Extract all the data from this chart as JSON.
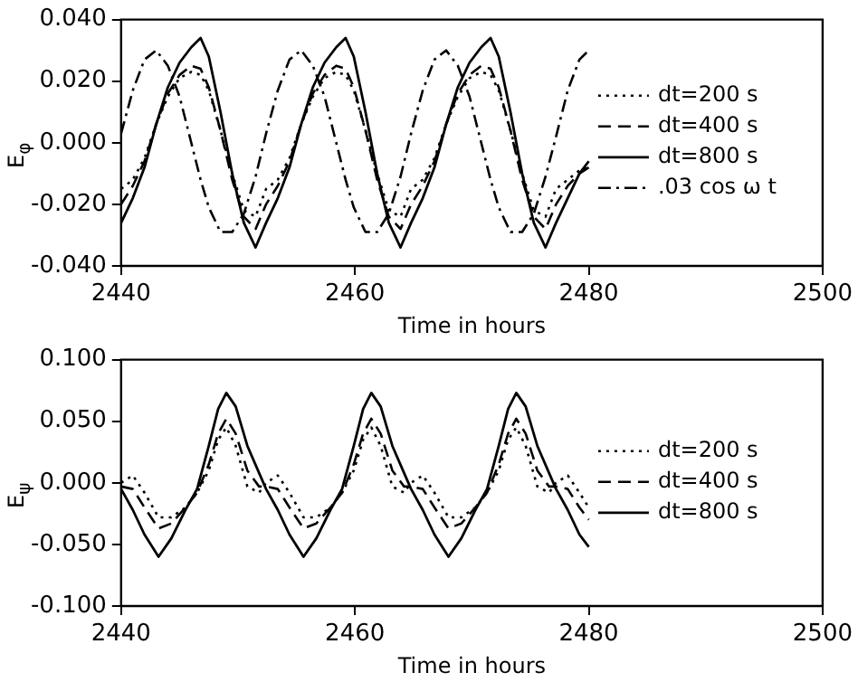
{
  "chart_data": [
    {
      "type": "line",
      "xlabel": "Time in hours",
      "ylabel": "E$_{φ}$",
      "xlim": [
        2440,
        2500
      ],
      "xticks": [
        2440,
        2460,
        2480,
        2500
      ],
      "ylim": [
        -0.04,
        0.04
      ],
      "yticks": [
        {
          "value": -0.04,
          "label": "-0.040"
        },
        {
          "value": -0.02,
          "label": "-0.020"
        },
        {
          "value": 0,
          "label": "0.000"
        },
        {
          "value": 0.02,
          "label": "0.020"
        },
        {
          "value": 0.04,
          "label": "0.040"
        }
      ],
      "grid": false,
      "legend": "right",
      "marker": "none",
      "series": [
        {
          "name": "dt=200 s",
          "color": "#000000",
          "line_style": "dotted",
          "x": [
            2440,
            2441,
            2442,
            2443,
            2444,
            2445,
            2446,
            2446.8,
            2447.5,
            2448.5,
            2449.5,
            2450.5,
            2451.5,
            2452.4,
            2453.4,
            2454.4,
            2455.4,
            2456.4,
            2457.4,
            2458.4,
            2459.2,
            2459.9,
            2460.9,
            2461.9,
            2462.9,
            2463.9,
            2464.8,
            2465.8,
            2466.8,
            2467.8,
            2468.8,
            2469.8,
            2470.8,
            2471.6,
            2472.3,
            2473.3,
            2474.3,
            2475.3,
            2476.3,
            2477.2,
            2478.2,
            2479.2,
            2480
          ],
          "values": [
            -0.015,
            -0.012,
            -0.005,
            0.006,
            0.015,
            0.021,
            0.023,
            0.022,
            0.017,
            0.004,
            -0.01,
            -0.022,
            -0.024,
            -0.015,
            -0.012,
            -0.005,
            0.006,
            0.015,
            0.021,
            0.023,
            0.022,
            0.017,
            0.004,
            -0.01,
            -0.022,
            -0.024,
            -0.015,
            -0.012,
            -0.005,
            0.006,
            0.015,
            0.021,
            0.023,
            0.022,
            0.017,
            0.004,
            -0.01,
            -0.022,
            -0.024,
            -0.015,
            -0.012,
            -0.009,
            -0.008
          ]
        },
        {
          "name": "dt=400 s",
          "color": "#000000",
          "line_style": "dashed",
          "x": [
            2440,
            2441,
            2442,
            2443,
            2444,
            2445,
            2446,
            2446.8,
            2447.5,
            2448.5,
            2449.5,
            2450.5,
            2451.5,
            2452.4,
            2453.4,
            2454.4,
            2455.4,
            2456.4,
            2457.4,
            2458.4,
            2459.2,
            2459.9,
            2460.9,
            2461.9,
            2462.9,
            2463.9,
            2464.8,
            2465.8,
            2466.8,
            2467.8,
            2468.8,
            2469.8,
            2470.8,
            2471.6,
            2472.3,
            2473.3,
            2474.3,
            2475.3,
            2476.3,
            2477.2,
            2478.2,
            2479.2,
            2480
          ],
          "values": [
            -0.02,
            -0.014,
            -0.006,
            0.006,
            0.016,
            0.022,
            0.025,
            0.024,
            0.018,
            0.004,
            -0.012,
            -0.024,
            -0.028,
            -0.02,
            -0.014,
            -0.006,
            0.006,
            0.016,
            0.022,
            0.025,
            0.024,
            0.018,
            0.004,
            -0.012,
            -0.024,
            -0.028,
            -0.02,
            -0.014,
            -0.006,
            0.006,
            0.016,
            0.022,
            0.025,
            0.024,
            0.018,
            0.004,
            -0.012,
            -0.024,
            -0.028,
            -0.02,
            -0.014,
            -0.01,
            -0.008
          ]
        },
        {
          "name": "dt=800 s",
          "color": "#000000",
          "line_style": "solid",
          "x": [
            2440,
            2441,
            2442,
            2443,
            2444,
            2445,
            2446,
            2446.8,
            2447.5,
            2448.5,
            2449.5,
            2450.5,
            2451.5,
            2452.4,
            2453.4,
            2454.4,
            2455.4,
            2456.4,
            2457.4,
            2458.4,
            2459.2,
            2459.9,
            2460.9,
            2461.9,
            2462.9,
            2463.9,
            2464.8,
            2465.8,
            2466.8,
            2467.8,
            2468.8,
            2469.8,
            2470.8,
            2471.6,
            2472.3,
            2473.3,
            2474.3,
            2475.3,
            2476.3,
            2477.2,
            2478.2,
            2479.2,
            2480
          ],
          "values": [
            -0.026,
            -0.018,
            -0.008,
            0.006,
            0.018,
            0.026,
            0.031,
            0.034,
            0.028,
            0.01,
            -0.01,
            -0.026,
            -0.034,
            -0.026,
            -0.018,
            -0.008,
            0.006,
            0.018,
            0.026,
            0.031,
            0.034,
            0.028,
            0.01,
            -0.01,
            -0.026,
            -0.034,
            -0.026,
            -0.018,
            -0.008,
            0.006,
            0.018,
            0.026,
            0.031,
            0.034,
            0.028,
            0.01,
            -0.01,
            -0.026,
            -0.034,
            -0.026,
            -0.018,
            -0.01,
            -0.006
          ]
        },
        {
          "name": ".03 cos ω t",
          "color": "#000000",
          "line_style": "dashdot",
          "x": [
            2440,
            2441,
            2442,
            2443,
            2444,
            2445,
            2446,
            2446.8,
            2447.5,
            2448.5,
            2449.5,
            2450.5,
            2451.5,
            2452.4,
            2453.4,
            2454.4,
            2455.4,
            2456.4,
            2457.4,
            2458.4,
            2459.2,
            2459.9,
            2460.9,
            2461.9,
            2462.9,
            2463.9,
            2464.8,
            2465.8,
            2466.8,
            2467.8,
            2468.8,
            2469.8,
            2470.8,
            2471.6,
            2472.3,
            2473.3,
            2474.3,
            2475.3,
            2476.3,
            2477.2,
            2478.2,
            2479.2,
            2480
          ],
          "values": [
            0.003,
            0.017,
            0.027,
            0.03,
            0.025,
            0.015,
            0.0,
            -0.012,
            -0.021,
            -0.029,
            -0.029,
            -0.023,
            -0.011,
            0.003,
            0.017,
            0.027,
            0.03,
            0.025,
            0.015,
            0.0,
            -0.012,
            -0.021,
            -0.029,
            -0.029,
            -0.023,
            -0.011,
            0.003,
            0.017,
            0.027,
            0.03,
            0.025,
            0.015,
            0.0,
            -0.012,
            -0.021,
            -0.029,
            -0.029,
            -0.023,
            -0.011,
            0.002,
            0.017,
            0.027,
            0.03
          ]
        }
      ]
    },
    {
      "type": "line",
      "xlabel": "Time in hours",
      "ylabel": "E$_{ψ}$",
      "xlim": [
        2440,
        2500
      ],
      "xticks": [
        2440,
        2460,
        2480,
        2500
      ],
      "ylim": [
        -0.1,
        0.1
      ],
      "yticks": [
        {
          "value": -0.1,
          "label": "-0.100"
        },
        {
          "value": -0.05,
          "label": "-0.050"
        },
        {
          "value": 0,
          "label": "0.000"
        },
        {
          "value": 0.05,
          "label": "0.050"
        },
        {
          "value": 0.1,
          "label": "0.100"
        }
      ],
      "grid": false,
      "legend": "right",
      "marker": "none",
      "series": [
        {
          "name": "dt=200 s",
          "color": "#000000",
          "line_style": "dotted",
          "x": [
            2440,
            2441,
            2442,
            2443.2,
            2444.3,
            2445.5,
            2446.5,
            2447.5,
            2448.3,
            2449,
            2449.8,
            2450.8,
            2451.8,
            2452.4,
            2453.4,
            2454.4,
            2455.6,
            2456.7,
            2457.9,
            2458.9,
            2459.9,
            2460.7,
            2461.4,
            2462.2,
            2463.2,
            2464.2,
            2464.8,
            2465.8,
            2466.8,
            2468,
            2469.1,
            2470.3,
            2471.3,
            2472.3,
            2473.1,
            2473.8,
            2474.6,
            2475.6,
            2476.6,
            2477.2,
            2478.2,
            2479.2,
            2480
          ],
          "values": [
            0.0,
            0.006,
            -0.008,
            -0.028,
            -0.028,
            -0.02,
            -0.008,
            0.01,
            0.035,
            0.045,
            0.03,
            -0.003,
            -0.008,
            0.0,
            0.006,
            -0.008,
            -0.028,
            -0.028,
            -0.02,
            -0.008,
            0.01,
            0.035,
            0.045,
            0.03,
            -0.003,
            -0.008,
            0.0,
            0.006,
            -0.008,
            -0.028,
            -0.028,
            -0.02,
            -0.008,
            0.01,
            0.035,
            0.045,
            0.03,
            -0.003,
            -0.008,
            0.0,
            0.006,
            -0.008,
            -0.02
          ]
        },
        {
          "name": "dt=400 s",
          "color": "#000000",
          "line_style": "dashed",
          "x": [
            2440,
            2441,
            2442,
            2443.2,
            2444.3,
            2445.5,
            2446.5,
            2447.5,
            2448.3,
            2449,
            2449.8,
            2450.8,
            2451.8,
            2452.4,
            2453.4,
            2454.4,
            2455.6,
            2456.7,
            2457.9,
            2458.9,
            2459.9,
            2460.7,
            2461.4,
            2462.2,
            2463.2,
            2464.2,
            2464.8,
            2465.8,
            2466.8,
            2468,
            2469.1,
            2470.3,
            2471.3,
            2472.3,
            2473.1,
            2473.8,
            2474.6,
            2475.6,
            2476.6,
            2477.2,
            2478.2,
            2479.2,
            2480
          ],
          "values": [
            -0.003,
            -0.005,
            -0.02,
            -0.037,
            -0.033,
            -0.02,
            -0.008,
            0.015,
            0.04,
            0.052,
            0.04,
            0.01,
            -0.003,
            -0.003,
            -0.005,
            -0.02,
            -0.037,
            -0.033,
            -0.02,
            -0.008,
            0.015,
            0.04,
            0.052,
            0.04,
            0.01,
            -0.003,
            -0.003,
            -0.005,
            -0.02,
            -0.037,
            -0.033,
            -0.02,
            -0.008,
            0.015,
            0.04,
            0.052,
            0.04,
            0.01,
            -0.003,
            -0.003,
            -0.005,
            -0.02,
            -0.03
          ]
        },
        {
          "name": "dt=800 s",
          "color": "#000000",
          "line_style": "solid",
          "x": [
            2440,
            2441,
            2442,
            2443.2,
            2444.3,
            2445.5,
            2446.5,
            2447.5,
            2448.3,
            2449,
            2449.8,
            2450.8,
            2451.8,
            2452.4,
            2453.4,
            2454.4,
            2455.6,
            2456.7,
            2457.9,
            2458.9,
            2459.9,
            2460.7,
            2461.4,
            2462.2,
            2463.2,
            2464.2,
            2464.8,
            2465.8,
            2466.8,
            2468,
            2469.1,
            2470.3,
            2471.3,
            2472.3,
            2473.1,
            2473.8,
            2474.6,
            2475.6,
            2476.6,
            2477.2,
            2478.2,
            2479.2,
            2480
          ],
          "values": [
            -0.005,
            -0.022,
            -0.042,
            -0.06,
            -0.045,
            -0.022,
            -0.005,
            0.03,
            0.06,
            0.073,
            0.062,
            0.03,
            0.008,
            -0.005,
            -0.022,
            -0.042,
            -0.06,
            -0.045,
            -0.022,
            -0.005,
            0.03,
            0.06,
            0.073,
            0.062,
            0.03,
            0.008,
            -0.005,
            -0.022,
            -0.042,
            -0.06,
            -0.045,
            -0.022,
            -0.005,
            0.03,
            0.06,
            0.073,
            0.062,
            0.03,
            0.008,
            -0.005,
            -0.022,
            -0.042,
            -0.052
          ]
        }
      ]
    }
  ]
}
